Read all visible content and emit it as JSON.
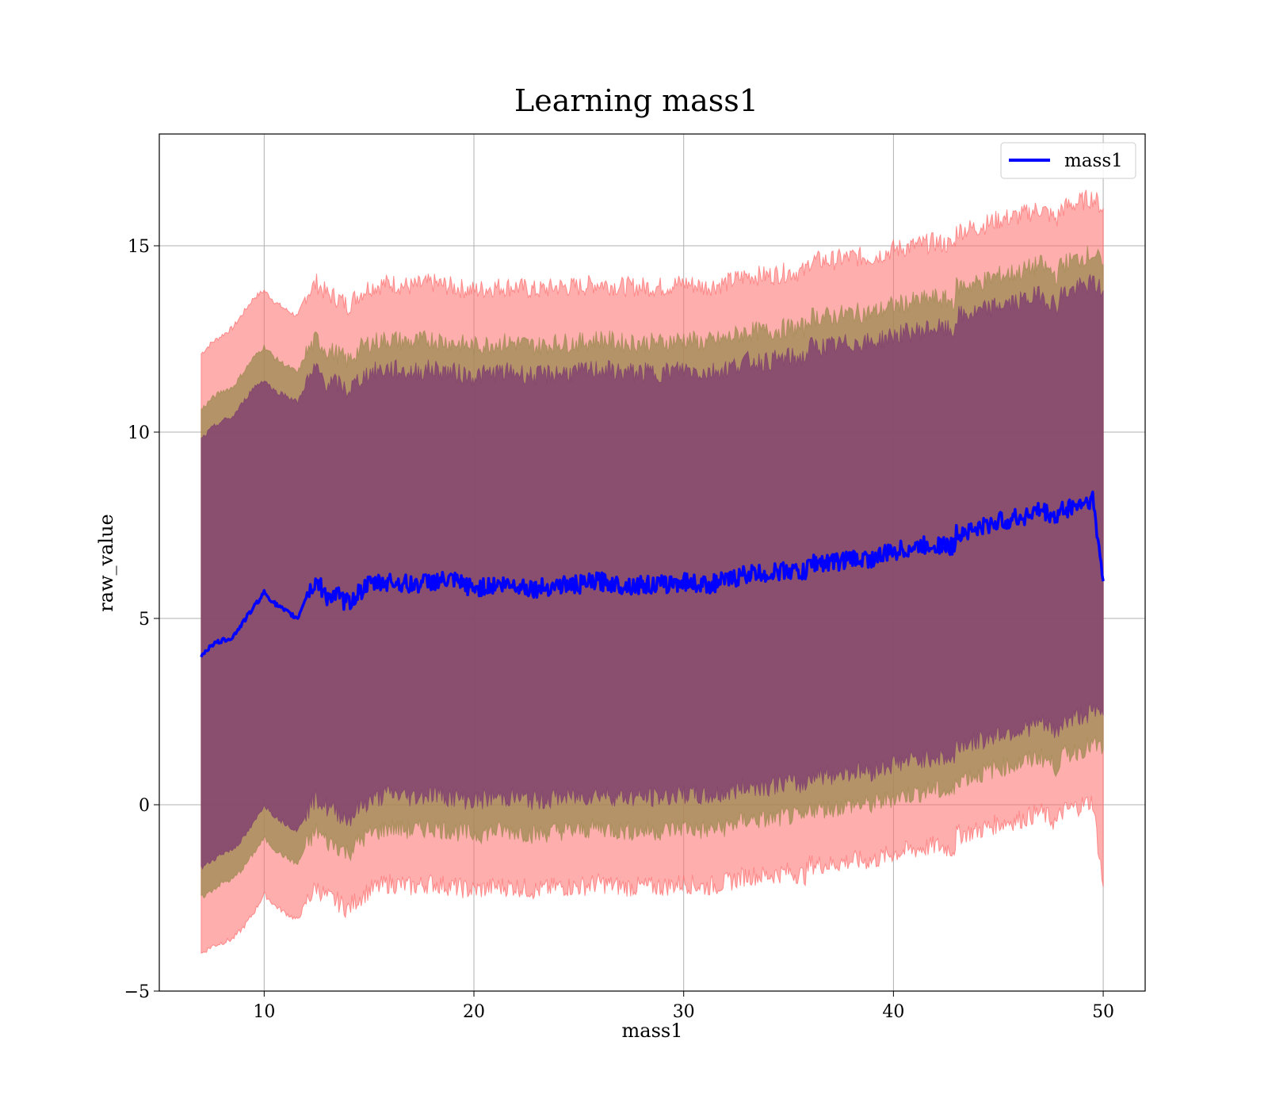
{
  "chart_data": {
    "type": "line",
    "title": "Learning mass1",
    "xlabel": "mass1",
    "ylabel": "raw_value",
    "xlim": [
      5,
      52
    ],
    "ylim": [
      -5,
      18
    ],
    "xticks": [
      10,
      20,
      30,
      40,
      50
    ],
    "yticks": [
      -5,
      0,
      5,
      10,
      15
    ],
    "xtick_labels": [
      "10",
      "20",
      "30",
      "40",
      "50"
    ],
    "ytick_labels": [
      "−5",
      "0",
      "5",
      "10",
      "15"
    ],
    "grid": true,
    "legend": {
      "position": "top-right",
      "entries": [
        "mass1"
      ]
    },
    "colors": {
      "line": "#0000ff",
      "band_outer": "#ff6b6b",
      "band_middle": "#9c8a50",
      "band_inner": "#7f3f6f",
      "grid": "#b0b0b0"
    },
    "series": [
      {
        "name": "mass1",
        "x": [
          7,
          7.5,
          8,
          8.5,
          9,
          9.5,
          10,
          10.5,
          11,
          11.3,
          11.6,
          12,
          12.5,
          13,
          13.5,
          14,
          14.5,
          15,
          16,
          17,
          18,
          19,
          20,
          21,
          22,
          23,
          24,
          25,
          26,
          27,
          28,
          29,
          30,
          31,
          32,
          33,
          34,
          35,
          35.8,
          36,
          37,
          38,
          39,
          40,
          41,
          42,
          42.9,
          43,
          44,
          45,
          46,
          47,
          47.8,
          48,
          49,
          49.5,
          50
        ],
        "y": [
          4.0,
          4.3,
          4.4,
          4.5,
          4.9,
          5.3,
          5.7,
          5.4,
          5.2,
          5.1,
          5.0,
          5.6,
          6.0,
          5.6,
          5.6,
          5.4,
          5.7,
          5.9,
          6.0,
          5.9,
          6.0,
          6.0,
          5.8,
          5.9,
          5.9,
          5.8,
          5.9,
          5.9,
          6.0,
          5.9,
          5.9,
          5.9,
          6.0,
          5.9,
          6.0,
          6.2,
          6.2,
          6.3,
          6.2,
          6.5,
          6.5,
          6.6,
          6.6,
          6.8,
          6.9,
          7.0,
          6.9,
          7.3,
          7.4,
          7.6,
          7.7,
          7.9,
          7.7,
          7.9,
          8.1,
          8.2,
          6.0
        ],
        "outer_band": {
          "upper": [
            12.1,
            12.4,
            12.6,
            12.8,
            13.2,
            13.6,
            13.8,
            13.5,
            13.3,
            13.2,
            13.1,
            13.7,
            14.0,
            13.7,
            13.6,
            13.4,
            13.7,
            13.9,
            14.0,
            13.9,
            14.0,
            13.9,
            13.8,
            13.9,
            13.9,
            13.8,
            13.9,
            13.9,
            14.0,
            13.9,
            13.9,
            13.9,
            14.0,
            13.9,
            14.0,
            14.2,
            14.2,
            14.3,
            14.3,
            14.6,
            14.6,
            14.7,
            14.7,
            14.9,
            15.0,
            15.1,
            15.0,
            15.4,
            15.5,
            15.7,
            15.8,
            16.0,
            15.7,
            16.0,
            16.2,
            16.3,
            16.0
          ],
          "lower": [
            -4.0,
            -3.8,
            -3.7,
            -3.6,
            -3.3,
            -2.9,
            -2.4,
            -2.7,
            -2.9,
            -3.0,
            -3.1,
            -2.6,
            -2.2,
            -2.5,
            -2.6,
            -2.8,
            -2.5,
            -2.3,
            -2.1,
            -2.2,
            -2.1,
            -2.2,
            -2.3,
            -2.2,
            -2.2,
            -2.3,
            -2.2,
            -2.2,
            -2.1,
            -2.2,
            -2.2,
            -2.2,
            -2.1,
            -2.2,
            -2.1,
            -1.9,
            -1.9,
            -1.8,
            -1.9,
            -1.6,
            -1.6,
            -1.5,
            -1.5,
            -1.3,
            -1.2,
            -1.1,
            -1.2,
            -0.8,
            -0.7,
            -0.5,
            -0.4,
            -0.2,
            -0.5,
            -0.2,
            0.0,
            0.1,
            -2.2
          ]
        },
        "middle_band": {
          "upper": [
            10.6,
            10.9,
            11.1,
            11.2,
            11.6,
            12.0,
            12.3,
            12.0,
            11.8,
            11.7,
            11.6,
            12.1,
            12.5,
            12.2,
            12.1,
            11.9,
            12.2,
            12.4,
            12.5,
            12.4,
            12.5,
            12.4,
            12.3,
            12.4,
            12.4,
            12.3,
            12.4,
            12.4,
            12.5,
            12.4,
            12.4,
            12.4,
            12.5,
            12.4,
            12.5,
            12.7,
            12.7,
            12.8,
            12.8,
            13.1,
            13.1,
            13.2,
            13.2,
            13.4,
            13.5,
            13.6,
            13.5,
            13.9,
            14.0,
            14.2,
            14.3,
            14.5,
            14.2,
            14.5,
            14.7,
            14.8,
            14.5
          ],
          "lower": [
            -2.5,
            -2.3,
            -2.1,
            -2.0,
            -1.7,
            -1.3,
            -0.9,
            -1.2,
            -1.4,
            -1.5,
            -1.6,
            -1.1,
            -0.7,
            -1.0,
            -1.1,
            -1.3,
            -1.0,
            -0.8,
            -0.6,
            -0.7,
            -0.6,
            -0.7,
            -0.8,
            -0.7,
            -0.7,
            -0.8,
            -0.7,
            -0.7,
            -0.6,
            -0.7,
            -0.7,
            -0.7,
            -0.6,
            -0.7,
            -0.6,
            -0.4,
            -0.4,
            -0.3,
            -0.4,
            -0.1,
            -0.1,
            0.0,
            0.0,
            0.2,
            0.3,
            0.4,
            0.3,
            0.7,
            0.8,
            1.0,
            1.1,
            1.3,
            1.0,
            1.3,
            1.5,
            1.6,
            1.5
          ]
        },
        "inner_band": {
          "upper": [
            9.8,
            10.1,
            10.3,
            10.4,
            10.8,
            11.2,
            11.4,
            11.1,
            11.0,
            10.9,
            10.8,
            11.3,
            11.7,
            11.3,
            11.3,
            11.1,
            11.4,
            11.6,
            11.7,
            11.6,
            11.7,
            11.6,
            11.5,
            11.6,
            11.6,
            11.5,
            11.6,
            11.6,
            11.7,
            11.6,
            11.6,
            11.6,
            11.7,
            11.6,
            11.7,
            11.9,
            11.9,
            12.0,
            12.0,
            12.3,
            12.3,
            12.4,
            12.4,
            12.6,
            12.7,
            12.8,
            12.7,
            13.1,
            13.2,
            13.4,
            13.5,
            13.7,
            13.4,
            13.7,
            13.9,
            14.0,
            13.8
          ],
          "lower": [
            -1.7,
            -1.5,
            -1.3,
            -1.2,
            -0.9,
            -0.5,
            0.0,
            -0.3,
            -0.5,
            -0.6,
            -0.7,
            -0.2,
            0.2,
            -0.1,
            -0.2,
            -0.4,
            -0.1,
            0.1,
            0.3,
            0.2,
            0.3,
            0.2,
            0.1,
            0.2,
            0.2,
            0.1,
            0.2,
            0.2,
            0.3,
            0.2,
            0.2,
            0.2,
            0.3,
            0.2,
            0.3,
            0.5,
            0.5,
            0.6,
            0.5,
            0.8,
            0.8,
            0.9,
            0.9,
            1.1,
            1.2,
            1.3,
            1.2,
            1.6,
            1.7,
            1.9,
            2.0,
            2.2,
            1.9,
            2.2,
            2.4,
            2.5,
            2.4
          ]
        }
      }
    ]
  }
}
